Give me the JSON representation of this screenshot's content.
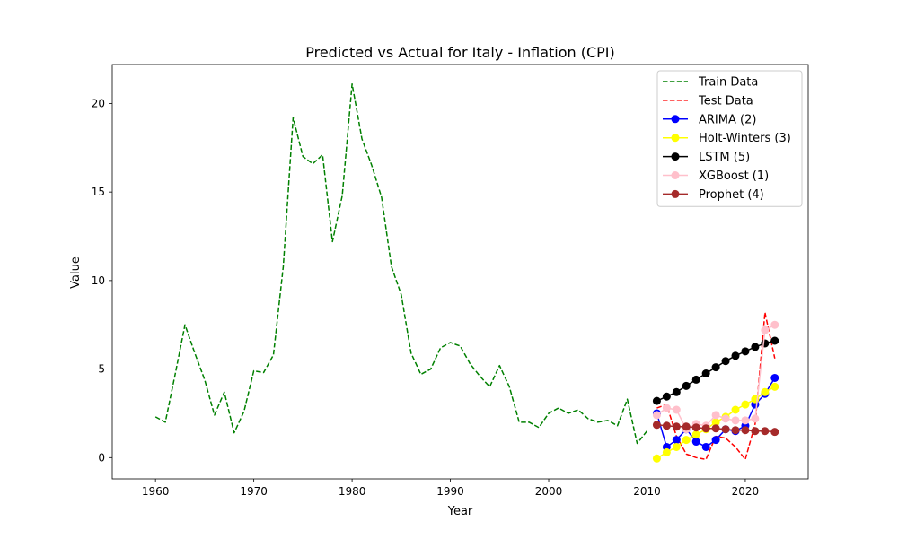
{
  "chart_data": {
    "type": "line",
    "title": "Predicted vs Actual for Italy - Inflation (CPI)",
    "xlabel": "Year",
    "ylabel": "Value",
    "xlim": [
      1955.6,
      2026.4
    ],
    "ylim": [
      -1.2,
      22.2
    ],
    "xticks": [
      1960,
      1970,
      1980,
      1990,
      2000,
      2010,
      2020
    ],
    "yticks": [
      0,
      5,
      10,
      15,
      20
    ],
    "grid": false,
    "legend_position": "top-right",
    "series": [
      {
        "name": "Train Data",
        "color": "#008000",
        "style": "dashed",
        "marker": "none",
        "x": [
          1960,
          1961,
          1962,
          1963,
          1964,
          1965,
          1966,
          1967,
          1968,
          1969,
          1970,
          1971,
          1972,
          1973,
          1974,
          1975,
          1976,
          1977,
          1978,
          1979,
          1980,
          1981,
          1982,
          1983,
          1984,
          1985,
          1986,
          1987,
          1988,
          1989,
          1990,
          1991,
          1992,
          1993,
          1994,
          1995,
          1996,
          1997,
          1998,
          1999,
          2000,
          2001,
          2002,
          2003,
          2004,
          2005,
          2006,
          2007,
          2008,
          2009,
          2010
        ],
        "values": [
          2.3,
          2.0,
          4.7,
          7.5,
          5.9,
          4.4,
          2.4,
          3.7,
          1.4,
          2.6,
          4.9,
          4.8,
          5.8,
          10.8,
          19.2,
          17.0,
          16.6,
          17.1,
          12.2,
          14.8,
          21.1,
          18.0,
          16.5,
          14.7,
          10.8,
          9.2,
          5.9,
          4.7,
          5.0,
          6.2,
          6.5,
          6.3,
          5.3,
          4.6,
          4.0,
          5.2,
          4.0,
          2.0,
          2.0,
          1.7,
          2.5,
          2.8,
          2.5,
          2.7,
          2.2,
          2.0,
          2.1,
          1.8,
          3.3,
          0.8,
          1.5
        ]
      },
      {
        "name": "Test Data",
        "color": "#ff0000",
        "style": "dashed",
        "marker": "none",
        "x": [
          2011,
          2012,
          2013,
          2014,
          2015,
          2016,
          2017,
          2018,
          2019,
          2020,
          2021,
          2022,
          2023
        ],
        "values": [
          2.8,
          3.0,
          1.2,
          0.2,
          0.0,
          -0.1,
          1.2,
          1.1,
          0.6,
          -0.1,
          1.9,
          8.2,
          5.6
        ]
      },
      {
        "name": "ARIMA (2)",
        "color": "#0000ff",
        "style": "solid",
        "marker": "circle",
        "x": [
          2011,
          2012,
          2013,
          2014,
          2015,
          2016,
          2017,
          2018,
          2019,
          2020,
          2021,
          2022,
          2023
        ],
        "values": [
          2.5,
          0.6,
          1.0,
          1.6,
          0.9,
          0.6,
          1.0,
          1.6,
          1.5,
          1.8,
          3.0,
          3.6,
          4.5
        ]
      },
      {
        "name": "Holt-Winters (3)",
        "color": "#ffff00",
        "style": "solid",
        "marker": "circle",
        "x": [
          2011,
          2012,
          2013,
          2014,
          2015,
          2016,
          2017,
          2018,
          2019,
          2020,
          2021,
          2022,
          2023
        ],
        "values": [
          -0.05,
          0.3,
          0.6,
          1.0,
          1.3,
          1.6,
          2.0,
          2.3,
          2.7,
          3.0,
          3.3,
          3.7,
          4.0
        ]
      },
      {
        "name": "LSTM (5)",
        "color": "#000000",
        "style": "solid",
        "marker": "circle",
        "x": [
          2011,
          2012,
          2013,
          2014,
          2015,
          2016,
          2017,
          2018,
          2019,
          2020,
          2021,
          2022,
          2023
        ],
        "values": [
          3.2,
          3.45,
          3.7,
          4.05,
          4.4,
          4.75,
          5.1,
          5.45,
          5.75,
          6.0,
          6.25,
          6.45,
          6.6
        ]
      },
      {
        "name": "XGBoost (1)",
        "color": "#ffc0cb",
        "style": "solid",
        "marker": "circle",
        "x": [
          2011,
          2012,
          2013,
          2014,
          2015,
          2016,
          2017,
          2018,
          2019,
          2020,
          2021,
          2022,
          2023
        ],
        "values": [
          2.4,
          2.8,
          2.7,
          1.6,
          1.9,
          1.8,
          2.4,
          2.2,
          2.1,
          2.1,
          2.2,
          7.2,
          7.5
        ]
      },
      {
        "name": "Prophet (4)",
        "color": "#a52a2a",
        "style": "solid",
        "marker": "circle",
        "x": [
          2011,
          2012,
          2013,
          2014,
          2015,
          2016,
          2017,
          2018,
          2019,
          2020,
          2021,
          2022,
          2023
        ],
        "values": [
          1.85,
          1.8,
          1.75,
          1.75,
          1.7,
          1.65,
          1.65,
          1.6,
          1.55,
          1.55,
          1.5,
          1.5,
          1.45
        ]
      }
    ]
  }
}
